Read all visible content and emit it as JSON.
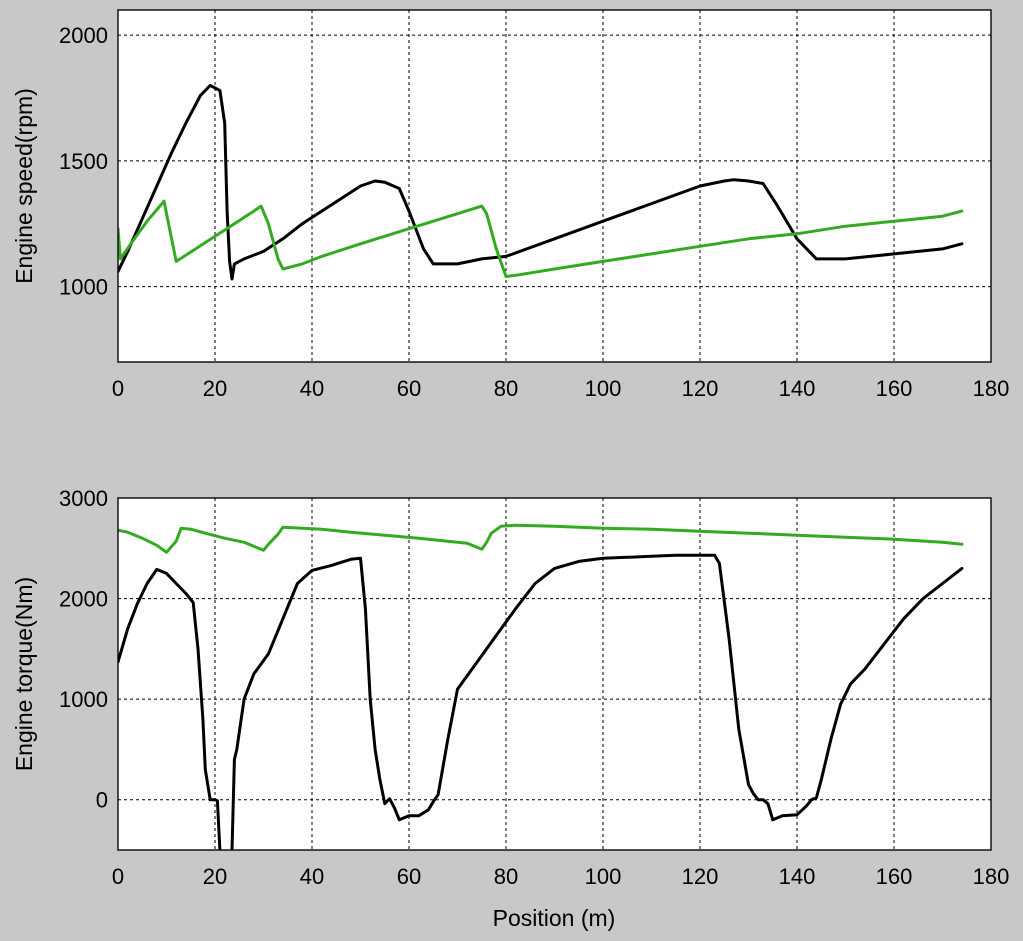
{
  "chart_data": [
    {
      "type": "line",
      "title": "",
      "xlabel": "",
      "ylabel": "Engine speed(rpm)",
      "xlim": [
        0,
        180
      ],
      "ylim": [
        700,
        2100
      ],
      "xticks": [
        0,
        20,
        40,
        60,
        80,
        100,
        120,
        140,
        160,
        180
      ],
      "yticks": [
        1000,
        1500,
        2000
      ],
      "grid": true,
      "series": [
        {
          "color": "#000000",
          "x": [
            0,
            2,
            5,
            8,
            11,
            14,
            17,
            19,
            21,
            22,
            22.5,
            23,
            23.5,
            24,
            26,
            30,
            34,
            38,
            42,
            46,
            50,
            53,
            55,
            58,
            60,
            63,
            65,
            70,
            75,
            80,
            90,
            100,
            110,
            120,
            125,
            127,
            130,
            133,
            136,
            140,
            144,
            150,
            160,
            170,
            174
          ],
          "y": [
            1060,
            1140,
            1270,
            1400,
            1530,
            1650,
            1760,
            1800,
            1780,
            1650,
            1300,
            1100,
            1030,
            1090,
            1110,
            1140,
            1190,
            1250,
            1300,
            1350,
            1400,
            1420,
            1415,
            1390,
            1300,
            1150,
            1090,
            1090,
            1110,
            1120,
            1190,
            1260,
            1330,
            1400,
            1420,
            1425,
            1420,
            1410,
            1320,
            1190,
            1110,
            1110,
            1130,
            1150,
            1170
          ]
        },
        {
          "color": "#33aa22",
          "x": [
            0,
            0.5,
            3,
            6,
            9.5,
            10,
            12,
            16,
            20,
            24,
            28,
            29.5,
            31,
            33,
            34,
            38,
            42,
            50,
            60,
            70,
            75,
            76,
            78,
            80,
            82,
            90,
            100,
            110,
            120,
            130,
            140,
            150,
            160,
            170,
            174
          ],
          "y": [
            1230,
            1110,
            1180,
            1260,
            1340,
            1290,
            1100,
            1150,
            1200,
            1250,
            1300,
            1320,
            1250,
            1110,
            1070,
            1090,
            1120,
            1170,
            1230,
            1290,
            1320,
            1290,
            1150,
            1040,
            1045,
            1070,
            1100,
            1130,
            1160,
            1190,
            1210,
            1240,
            1260,
            1280,
            1300
          ]
        }
      ]
    },
    {
      "type": "line",
      "title": "",
      "xlabel": "Position (m)",
      "ylabel": "Engine torque(Nm)",
      "xlim": [
        0,
        180
      ],
      "ylim": [
        -500,
        3000
      ],
      "xticks": [
        0,
        20,
        40,
        60,
        80,
        100,
        120,
        140,
        160,
        180
      ],
      "yticks": [
        0,
        1000,
        2000,
        3000
      ],
      "grid": true,
      "series": [
        {
          "color": "#000000",
          "x": [
            0,
            2,
            4,
            6,
            8,
            10,
            12,
            14,
            15.5,
            16.5,
            17.5,
            18,
            19,
            20,
            20.5,
            21,
            21.5,
            22.5,
            23.5,
            24,
            24.5,
            26,
            28,
            31,
            34,
            37,
            40,
            44,
            48,
            50,
            51,
            52,
            53,
            54,
            55,
            56,
            57,
            58,
            60,
            62,
            64,
            65,
            66,
            68,
            70,
            73,
            76,
            79,
            82,
            86,
            90,
            95,
            100,
            105,
            110,
            115,
            120,
            123,
            124,
            126,
            128,
            130,
            131,
            132,
            133,
            134,
            135,
            137,
            140,
            142,
            143,
            144,
            145,
            147,
            149,
            151,
            154,
            158,
            162,
            166,
            170,
            174
          ],
          "y": [
            1370,
            1700,
            1950,
            2150,
            2290,
            2250,
            2150,
            2050,
            1960,
            1500,
            800,
            300,
            0,
            0,
            -10,
            -500,
            null,
            null,
            -500,
            400,
            500,
            1000,
            1250,
            1450,
            1800,
            2150,
            2280,
            2330,
            2390,
            2400,
            1900,
            1000,
            500,
            200,
            -40,
            10,
            -80,
            -200,
            -160,
            -160,
            -100,
            -20,
            50,
            600,
            1100,
            1300,
            1500,
            1700,
            1900,
            2150,
            2300,
            2370,
            2400,
            2410,
            2420,
            2430,
            2430,
            2430,
            2350,
            1600,
            700,
            150,
            60,
            0,
            0,
            -40,
            -200,
            -160,
            -150,
            -60,
            0,
            20,
            200,
            600,
            950,
            1150,
            1300,
            1550,
            1800,
            2000,
            2150,
            2300
          ]
        },
        {
          "color": "#33aa22",
          "x": [
            0,
            2,
            5,
            8,
            10,
            12,
            13,
            15,
            18,
            22,
            26,
            30,
            31,
            33,
            34,
            38,
            42,
            48,
            55,
            62,
            68,
            72,
            75,
            76,
            77,
            79,
            82,
            90,
            100,
            110,
            120,
            130,
            140,
            150,
            160,
            170,
            174
          ],
          "y": [
            2680,
            2660,
            2600,
            2530,
            2460,
            2570,
            2700,
            2690,
            2650,
            2600,
            2560,
            2480,
            2540,
            2640,
            2710,
            2700,
            2690,
            2660,
            2630,
            2600,
            2570,
            2550,
            2490,
            2560,
            2650,
            2720,
            2730,
            2720,
            2700,
            2690,
            2670,
            2650,
            2630,
            2610,
            2590,
            2560,
            2540
          ]
        }
      ]
    }
  ]
}
